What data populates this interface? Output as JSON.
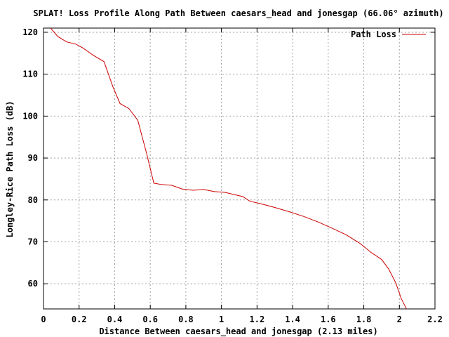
{
  "chart_data": {
    "type": "line",
    "title": "SPLAT! Loss Profile Along Path Between caesars_head and jonesgap (66.06° azimuth)",
    "xlabel": "Distance Between caesars_head and jonesgap (2.13 miles)",
    "ylabel": "Longley-Rice Path Loss (dB)",
    "xlim": [
      0,
      2.2
    ],
    "ylim": [
      54,
      121
    ],
    "x_ticks": [
      0,
      0.2,
      0.4,
      0.6,
      0.8,
      1,
      1.2,
      1.4,
      1.6,
      1.8,
      2,
      2.2
    ],
    "x_tick_labels": [
      "0",
      "0.2",
      "0.4",
      "0.6",
      "0.8",
      "1",
      "1.2",
      "1.4",
      "1.6",
      "1.8",
      "2",
      "2.2"
    ],
    "y_ticks": [
      60,
      70,
      80,
      90,
      100,
      110,
      120
    ],
    "y_tick_labels": [
      "60",
      "70",
      "80",
      "90",
      "100",
      "110",
      "120"
    ],
    "grid": true,
    "legend_position": "top-right",
    "colors": {
      "series": "#cc0000",
      "grid": "#a0a0a0",
      "axis": "#000000"
    },
    "series": [
      {
        "name": "Path Loss",
        "x": [
          0.04,
          0.08,
          0.13,
          0.18,
          0.22,
          0.28,
          0.34,
          0.39,
          0.43,
          0.48,
          0.53,
          0.58,
          0.62,
          0.66,
          0.72,
          0.78,
          0.84,
          0.9,
          0.96,
          1.02,
          1.08,
          1.12,
          1.16,
          1.22,
          1.3,
          1.38,
          1.46,
          1.54,
          1.62,
          1.7,
          1.78,
          1.84,
          1.9,
          1.94,
          1.98,
          2.01,
          2.04
        ],
        "y": [
          121,
          119,
          117.7,
          117.2,
          116.3,
          114.5,
          113,
          107,
          103,
          101.8,
          99,
          91,
          84,
          83.7,
          83.5,
          82.6,
          82.3,
          82.5,
          82,
          81.8,
          81.2,
          80.8,
          79.7,
          79.1,
          78.2,
          77.2,
          76.1,
          74.8,
          73.3,
          71.7,
          69.6,
          67.5,
          65.8,
          63.5,
          60.2,
          56.5,
          54
        ]
      }
    ]
  }
}
